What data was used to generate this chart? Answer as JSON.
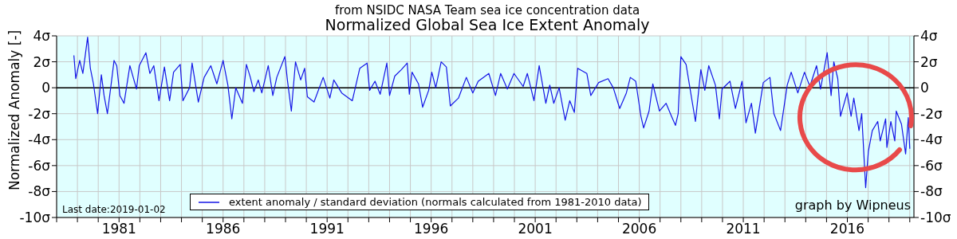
{
  "chart_data": {
    "type": "line",
    "title": "Normalized Global Sea Ice Extent Anomaly",
    "subtitle": "from NSIDC NASA Team sea ice concentration data",
    "ylabel": "Normalized Anomaly [-]",
    "annotations": [
      "Last date:2019-01-02",
      "graph by Wipneus"
    ],
    "x": [
      1978.83,
      1978.92,
      1979.11,
      1979.26,
      1979.36,
      1979.49,
      1979.62,
      1979.77,
      1979.97,
      1980.15,
      1980.28,
      1980.44,
      1980.63,
      1980.76,
      1980.89,
      1981.04,
      1981.24,
      1981.52,
      1981.84,
      1981.97,
      1982.29,
      1982.48,
      1982.67,
      1982.92,
      1983.18,
      1983.43,
      1983.62,
      1983.94,
      1984.07,
      1984.39,
      1984.51,
      1984.81,
      1985.09,
      1985.41,
      1985.7,
      1986.0,
      1986.23,
      1986.42,
      1986.61,
      1986.93,
      1987.12,
      1987.31,
      1987.48,
      1987.69,
      1987.86,
      1988.17,
      1988.39,
      1988.58,
      1988.97,
      1989.09,
      1989.28,
      1989.48,
      1989.73,
      1989.92,
      1990.05,
      1990.37,
      1990.81,
      1991.13,
      1991.32,
      1991.7,
      1992.21,
      1992.57,
      1992.92,
      1993.04,
      1993.3,
      1993.55,
      1993.87,
      1994.0,
      1994.25,
      1994.57,
      1994.85,
      1994.95,
      1995.08,
      1995.39,
      1995.59,
      1995.88,
      1996.03,
      1996.22,
      1996.48,
      1996.73,
      1996.92,
      1997.31,
      1997.69,
      1998.0,
      1998.26,
      1998.77,
      1999.09,
      1999.34,
      1999.66,
      1999.98,
      2000.42,
      2000.62,
      2000.94,
      2001.19,
      2001.51,
      2001.7,
      2001.89,
      2002.15,
      2002.44,
      2002.66,
      2002.88,
      2003.04,
      2003.48,
      2003.67,
      2004.05,
      2004.5,
      2004.75,
      2005.06,
      2005.38,
      2005.57,
      2005.83,
      2006.08,
      2006.21,
      2006.47,
      2006.65,
      2006.97,
      2007.29,
      2007.55,
      2007.74,
      2007.87,
      2008.0,
      2008.25,
      2008.7,
      2008.96,
      2009.15,
      2009.34,
      2009.66,
      2009.85,
      2009.98,
      2010.36,
      2010.62,
      2010.94,
      2011.13,
      2011.39,
      2011.58,
      2011.96,
      2012.28,
      2012.47,
      2012.79,
      2013.11,
      2013.3,
      2013.62,
      2013.94,
      2014.2,
      2014.52,
      2014.71,
      2015.03,
      2015.22,
      2015.35,
      2015.54,
      2015.67,
      2015.99,
      2016.18,
      2016.31,
      2016.56,
      2016.69,
      2016.88,
      2017.01,
      2017.2,
      2017.46,
      2017.58,
      2017.84,
      2017.9,
      2018.09,
      2018.28,
      2018.35,
      2018.6,
      2018.8,
      2018.93,
      2019.0
    ],
    "series": [
      {
        "name": "extent anomaly / standard deviation (normals calculated from 1981-2010 data)",
        "color": "#1414e6",
        "values": [
          2.5,
          0.7,
          2.1,
          1.1,
          2.3,
          3.9,
          1.5,
          0.3,
          -2.0,
          1.0,
          -0.6,
          -2.0,
          0.4,
          2.1,
          1.7,
          -0.6,
          -1.2,
          1.7,
          -0.1,
          1.7,
          2.7,
          1.1,
          1.7,
          -1.0,
          1.6,
          -1.0,
          1.2,
          1.8,
          -1.0,
          0.0,
          1.9,
          -1.1,
          0.8,
          1.7,
          0.3,
          2.1,
          0.2,
          -2.4,
          0.0,
          -1.2,
          1.8,
          0.8,
          -0.3,
          0.6,
          -0.4,
          1.7,
          -0.6,
          0.8,
          2.4,
          0.6,
          -1.8,
          2.0,
          0.6,
          1.5,
          -0.7,
          -1.1,
          0.8,
          -0.8,
          0.6,
          -0.4,
          -1.0,
          1.5,
          1.9,
          -0.2,
          0.5,
          -0.5,
          1.9,
          -0.6,
          0.9,
          1.4,
          1.9,
          -0.5,
          1.2,
          0.3,
          -1.5,
          -0.2,
          1.2,
          0.0,
          2.0,
          1.6,
          -1.4,
          -0.8,
          0.8,
          -0.4,
          0.5,
          1.1,
          -0.6,
          1.1,
          -0.1,
          1.1,
          0.1,
          1.1,
          -1.0,
          1.7,
          -1.2,
          0.2,
          -1.2,
          0.0,
          -2.5,
          -1.0,
          -1.9,
          1.5,
          1.1,
          -0.6,
          0.4,
          0.7,
          0.0,
          -1.6,
          -0.4,
          0.8,
          0.5,
          -2.2,
          -3.1,
          -1.8,
          0.3,
          -1.8,
          -1.2,
          -2.2,
          -2.9,
          -2.0,
          2.4,
          1.8,
          -2.6,
          1.4,
          -0.2,
          1.7,
          0.2,
          -2.4,
          -0.1,
          0.5,
          -1.6,
          0.5,
          -2.7,
          -1.2,
          -3.5,
          0.4,
          0.8,
          -2.0,
          -3.3,
          0.2,
          1.2,
          -0.4,
          1.2,
          0.1,
          1.7,
          -0.1,
          2.7,
          -0.6,
          2.0,
          0.7,
          -2.2,
          -0.4,
          -2.2,
          -0.8,
          -3.3,
          -2.0,
          -7.7,
          -4.9,
          -3.3,
          -2.6,
          -4.1,
          -2.4,
          -4.6,
          -2.6,
          -4.1,
          -1.8,
          -2.8,
          -5.1,
          -2.3,
          -4.7
        ]
      }
    ],
    "xlim": [
      1978,
      2019.2
    ],
    "xticks": [
      {
        "value": 1978,
        "label": null
      },
      {
        "value": 1979,
        "label": null
      },
      {
        "value": 1980,
        "label": null
      },
      1981,
      {
        "value": 1982,
        "label": null
      },
      {
        "value": 1983,
        "label": null
      },
      {
        "value": 1984,
        "label": null
      },
      {
        "value": 1985,
        "label": null
      },
      1986,
      {
        "value": 1987,
        "label": null
      },
      {
        "value": 1988,
        "label": null
      },
      {
        "value": 1989,
        "label": null
      },
      {
        "value": 1990,
        "label": null
      },
      1991,
      {
        "value": 1992,
        "label": null
      },
      {
        "value": 1993,
        "label": null
      },
      {
        "value": 1994,
        "label": null
      },
      {
        "value": 1995,
        "label": null
      },
      1996,
      {
        "value": 1997,
        "label": null
      },
      {
        "value": 1998,
        "label": null
      },
      {
        "value": 1999,
        "label": null
      },
      {
        "value": 2000,
        "label": null
      },
      2001,
      {
        "value": 2002,
        "label": null
      },
      {
        "value": 2003,
        "label": null
      },
      {
        "value": 2004,
        "label": null
      },
      {
        "value": 2005,
        "label": null
      },
      2006,
      {
        "value": 2007,
        "label": null
      },
      {
        "value": 2008,
        "label": null
      },
      {
        "value": 2009,
        "label": null
      },
      {
        "value": 2010,
        "label": null
      },
      2011,
      {
        "value": 2012,
        "label": null
      },
      {
        "value": 2013,
        "label": null
      },
      {
        "value": 2014,
        "label": null
      },
      {
        "value": 2015,
        "label": null
      },
      2016,
      {
        "value": 2017,
        "label": null
      },
      {
        "value": 2018,
        "label": null
      },
      {
        "value": 2019,
        "label": null
      }
    ],
    "ylim": [
      -10,
      4
    ],
    "yticks": [
      {
        "value": -10,
        "label": "-10σ"
      },
      {
        "value": -8,
        "label": "-8σ"
      },
      {
        "value": -6,
        "label": "-6σ"
      },
      {
        "value": -4,
        "label": "-4σ"
      },
      {
        "value": -2,
        "label": "-2σ"
      },
      0,
      {
        "value": 2,
        "label": "2σ"
      },
      {
        "value": 4,
        "label": "4σ"
      }
    ],
    "y2lim": [
      -10,
      4
    ],
    "y2ticks": [
      {
        "value": -10,
        "label": "-10σ"
      },
      {
        "value": -8,
        "label": "-8σ"
      },
      {
        "value": -6,
        "label": "-6σ"
      },
      {
        "value": -4,
        "label": "-4σ"
      },
      {
        "value": -2,
        "label": "-2σ"
      },
      0,
      {
        "value": 2,
        "label": "2σ"
      },
      {
        "value": 4,
        "label": "4σ"
      }
    ],
    "ref_lines": [
      {
        "axis": "y",
        "value": 0,
        "color": "#000000"
      }
    ],
    "grid": true,
    "legend": "bottom"
  }
}
